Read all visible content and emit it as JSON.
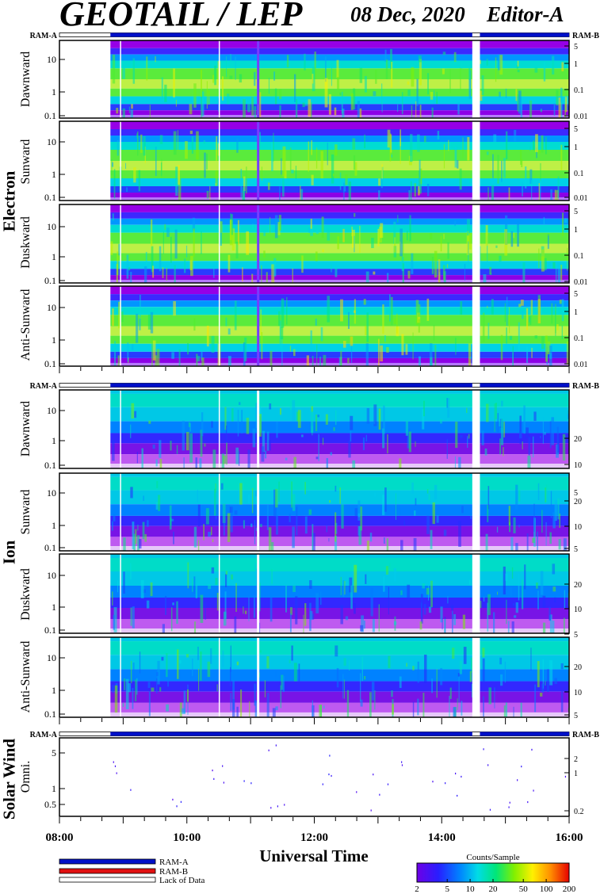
{
  "header": {
    "title": "GEOTAIL / LEP",
    "date": "08 Dec, 2020",
    "editor": "Editor-A"
  },
  "chart_data": {
    "type": "heatmap",
    "xlabel": "Universal Time",
    "x_ticks": [
      "08:00",
      "10:00",
      "12:00",
      "14:00",
      "16:00"
    ],
    "x_range_hours": [
      8,
      16
    ],
    "data_start_hour": 8.8,
    "data_gaps_hours": [
      [
        14.48,
        14.6
      ]
    ],
    "ram_labels": {
      "left": "RAM-A",
      "right": "RAM-B"
    },
    "groups": [
      {
        "name": "Electron",
        "left_ticks": [
          "10",
          "1",
          "0.1"
        ],
        "right_ticks": [
          "5",
          "1",
          "0.1",
          "0.01"
        ],
        "panels": [
          "Dawnward",
          "Sunward",
          "Duskward",
          "Anti-Sunward"
        ]
      },
      {
        "name": "Ion",
        "left_ticks": [
          "10",
          "1",
          "0.1"
        ],
        "right_ticks": [
          "20",
          "10",
          "5"
        ],
        "panels": [
          "Dawnward",
          "Sunward",
          "Duskward",
          "Anti-Sunward"
        ]
      },
      {
        "name": "Solar Wind",
        "left_ticks": [
          "5",
          "1",
          "0.5"
        ],
        "right_ticks": [
          "2",
          "1",
          "0.2"
        ],
        "panels": [
          "Omni."
        ]
      }
    ],
    "legend": {
      "items": [
        "RAM-A",
        "RAM-B",
        "Lack of Data"
      ],
      "colors": [
        "#0010c8",
        "#e01010",
        "#ffffff"
      ]
    },
    "colorbar": {
      "title": "Counts/Sample",
      "ticks": [
        "2",
        "5",
        "10",
        "20",
        "50",
        "100",
        "200"
      ]
    }
  }
}
